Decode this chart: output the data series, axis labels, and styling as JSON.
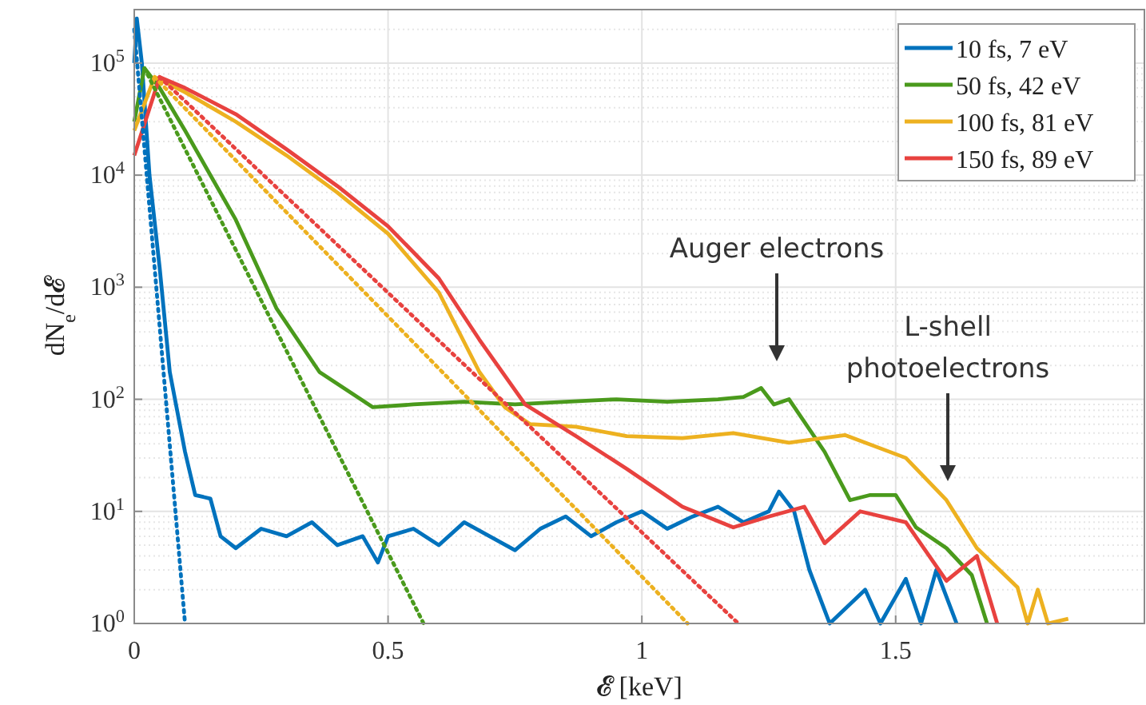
{
  "chart_data": {
    "type": "line",
    "xlabel": "𝓔 [keV]",
    "ylabel": "dN$_{e}$/d𝓔",
    "xlim": [
      0,
      1.99
    ],
    "xticks": [
      0,
      0.5,
      1,
      1.5
    ],
    "ylim": [
      1,
      300000
    ],
    "yticks": [
      {
        "value": 1,
        "label": "10$^{0}$"
      },
      {
        "value": 10,
        "label": "10$^{1}$"
      },
      {
        "value": 100,
        "label": "10$^{2}$"
      },
      {
        "value": 1000,
        "label": "10$^{3}$"
      },
      {
        "value": 10000,
        "label": "10$^{4}$"
      },
      {
        "value": 100000,
        "label": "10$^{5}$"
      }
    ],
    "log": "y",
    "grid": true,
    "legend": "top right",
    "line_style": "solid",
    "series": [
      {
        "name": "10 fs, 7 eV",
        "color": "#0072bd",
        "x": [
          0,
          0.005,
          0.015,
          0.03,
          0.05,
          0.07,
          0.1,
          0.12,
          0.15,
          0.17,
          0.2,
          0.25,
          0.3,
          0.35,
          0.4,
          0.45,
          0.48,
          0.5,
          0.55,
          0.6,
          0.65,
          0.7,
          0.75,
          0.8,
          0.85,
          0.9,
          0.95,
          1.0,
          1.05,
          1.1,
          1.15,
          1.2,
          1.25,
          1.27,
          1.3,
          1.33,
          1.37,
          1.44,
          1.47,
          1.52,
          1.55,
          1.58,
          1.62
        ],
        "values": [
          100000,
          250000,
          100000,
          10000,
          1500,
          175,
          34,
          14,
          13,
          6,
          4.7,
          7,
          6,
          8,
          5,
          6,
          3.5,
          6,
          7,
          5,
          8,
          6,
          4.5,
          7,
          9,
          6,
          8,
          10,
          7,
          9,
          11,
          8,
          10,
          15,
          10,
          3,
          1,
          2,
          1,
          2.5,
          1,
          3,
          1
        ]
      },
      {
        "name": "50 fs, 42 eV",
        "color": "#4a9a1c",
        "x": [
          0,
          0.02,
          0.05,
          0.1,
          0.2,
          0.28,
          0.365,
          0.42,
          0.47,
          0.55,
          0.65,
          0.75,
          0.85,
          0.95,
          1.05,
          1.15,
          1.2,
          1.235,
          1.26,
          1.29,
          1.36,
          1.41,
          1.45,
          1.5,
          1.54,
          1.6,
          1.65,
          1.68
        ],
        "values": [
          30000,
          90000,
          60000,
          25000,
          4000,
          650,
          175,
          120,
          85,
          90,
          95,
          90,
          95,
          100,
          95,
          100,
          105,
          126,
          90,
          100,
          34,
          12.6,
          14,
          14,
          7.2,
          4.7,
          2.7,
          1
        ]
      },
      {
        "name": "100 fs, 81 eV",
        "color": "#edb120",
        "x": [
          0,
          0.04,
          0.1,
          0.2,
          0.3,
          0.4,
          0.5,
          0.6,
          0.68,
          0.73,
          0.78,
          0.87,
          0.97,
          1.08,
          1.18,
          1.29,
          1.4,
          1.52,
          1.6,
          1.66,
          1.74,
          1.76,
          1.78,
          1.8,
          1.84
        ],
        "values": [
          25000,
          75000,
          55000,
          30000,
          15000,
          7000,
          3000,
          900,
          175,
          85,
          60,
          57,
          47,
          45,
          50,
          41,
          48,
          30,
          12.6,
          4.7,
          2.1,
          1,
          2,
          1,
          1.1
        ]
      },
      {
        "name": "150 fs, 89 eV",
        "color": "#e8423f",
        "x": [
          0,
          0.05,
          0.1,
          0.2,
          0.3,
          0.4,
          0.5,
          0.6,
          0.68,
          0.77,
          0.87,
          0.97,
          1.08,
          1.18,
          1.25,
          1.32,
          1.36,
          1.43,
          1.52,
          1.6,
          1.66,
          1.7
        ],
        "values": [
          15000,
          75000,
          60000,
          35000,
          17000,
          8000,
          3500,
          1200,
          340,
          90,
          47,
          24,
          11,
          7.2,
          9,
          11,
          5.2,
          10,
          8,
          2.4,
          4,
          1
        ]
      },
      {
        "type": "line",
        "line_style": "dotted",
        "color": "#0072bd",
        "x": [
          0,
          0.1
        ],
        "values": [
          200000,
          1
        ]
      },
      {
        "type": "line",
        "line_style": "dotted",
        "color": "#4a9a1c",
        "x": [
          0.02,
          0.57
        ],
        "values": [
          90000,
          1
        ]
      },
      {
        "type": "line",
        "line_style": "dotted",
        "color": "#edb120",
        "x": [
          0.04,
          1.09
        ],
        "values": [
          75000,
          1
        ]
      },
      {
        "type": "line",
        "line_style": "dotted",
        "color": "#e8423f",
        "x": [
          0.05,
          1.19
        ],
        "values": [
          75000,
          1
        ]
      }
    ],
    "annotations": [
      "Auger electrons",
      "L-shell photoelectrons"
    ]
  }
}
